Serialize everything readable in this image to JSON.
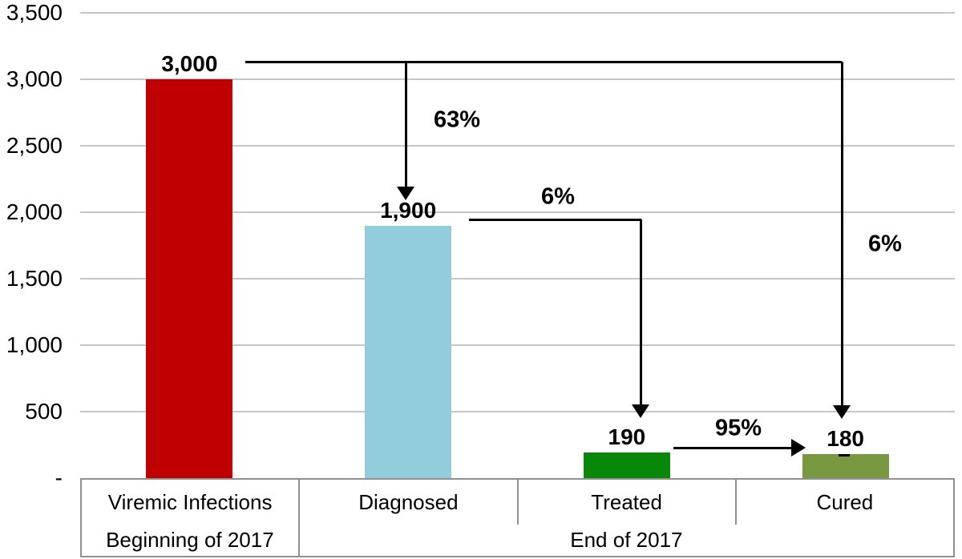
{
  "chart_data": {
    "type": "bar",
    "title": "",
    "categories": [
      "Viremic Infections",
      "Diagnosed",
      "Treated",
      "Cured"
    ],
    "values": [
      3000,
      1900,
      190,
      180
    ],
    "value_labels": [
      "3,000",
      "1,900",
      "190",
      "180"
    ],
    "bar_colors": [
      "#C00000",
      "#92CDDC",
      "#088708",
      "#78993F"
    ],
    "xlabel": "",
    "ylabel": "",
    "ylim": [
      0,
      3500
    ],
    "grid": true,
    "legend": "none",
    "y_ticks": [
      {
        "value": 3500,
        "label": "3,500"
      },
      {
        "value": 3000,
        "label": "3,000"
      },
      {
        "value": 2500,
        "label": "2,500"
      },
      {
        "value": 2000,
        "label": "2,000"
      },
      {
        "value": 1500,
        "label": "1,500"
      },
      {
        "value": 1000,
        "label": "1,000"
      },
      {
        "value": 500,
        "label": "500"
      },
      {
        "value": 0,
        "label": "-"
      }
    ],
    "group_axis": [
      {
        "label": "Beginning of 2017",
        "start": 0,
        "end": 0
      },
      {
        "label": "End of 2017",
        "start": 1,
        "end": 3
      }
    ],
    "flow_annotations": [
      {
        "label": "63%",
        "from": "Viremic Infections",
        "to": "Diagnosed"
      },
      {
        "label": "6%",
        "from": "Diagnosed",
        "to": "Treated"
      },
      {
        "label": "95%",
        "from": "Treated",
        "to": "Cured"
      },
      {
        "label": "6%",
        "from": "Viremic Infections",
        "to": "Cured"
      }
    ],
    "colors": {
      "gridline": "#C6C6C6",
      "axis_text": "#000000",
      "table_border": "#909090",
      "arrow": "#000000",
      "background": "#FFFFFF"
    }
  }
}
